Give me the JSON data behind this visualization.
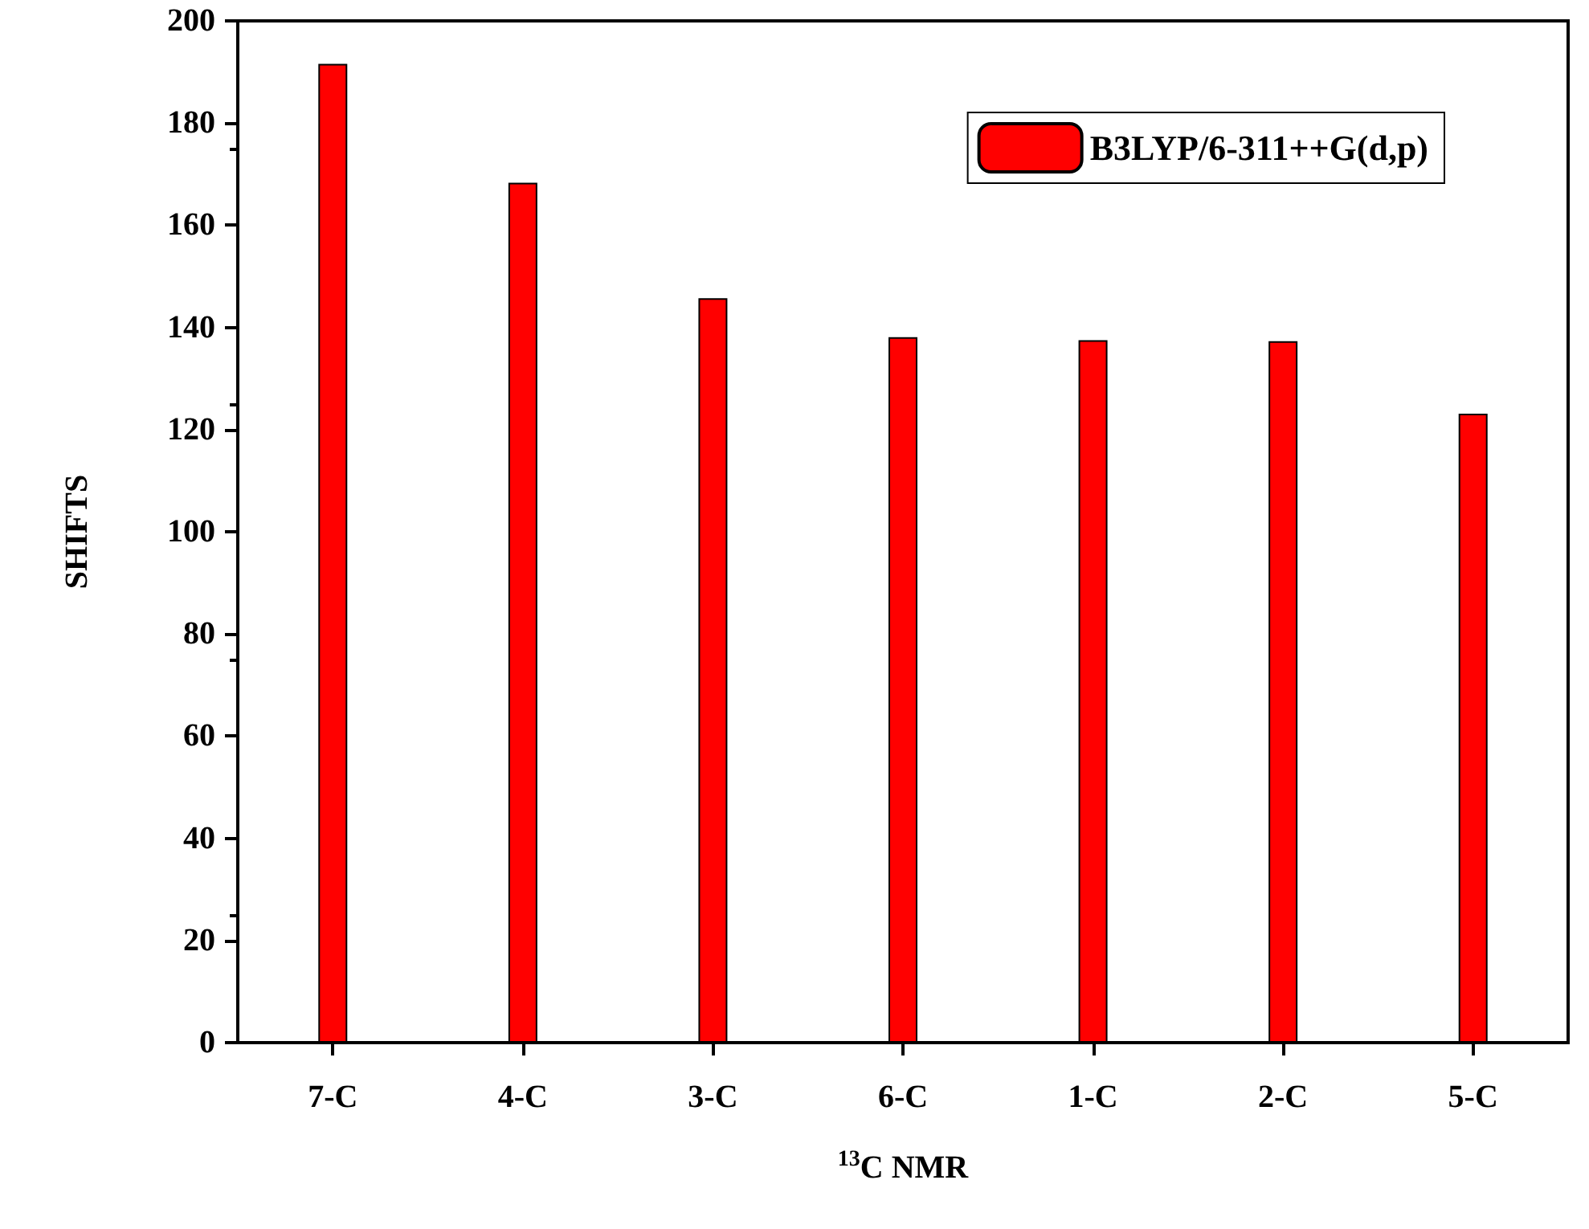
{
  "chart_data": {
    "type": "bar",
    "xlabel": "$^{13}$C NMR",
    "ylabel": "SHIFTS",
    "categories": [
      "7-C",
      "4-C",
      "3-C",
      "6-C",
      "1-C",
      "2-C",
      "5-C"
    ],
    "series": [
      {
        "name": "B3LYP/6-311++G(d,p)",
        "color": "#ff0000",
        "values": [
          191.6,
          168.3,
          145.7,
          138.1,
          137.5,
          137.3,
          123.1
        ]
      }
    ],
    "ylim": [
      0,
      200
    ],
    "yticks": [
      0,
      20,
      40,
      60,
      80,
      100,
      120,
      140,
      160,
      180,
      200
    ],
    "grid": false,
    "legend": "top right"
  }
}
